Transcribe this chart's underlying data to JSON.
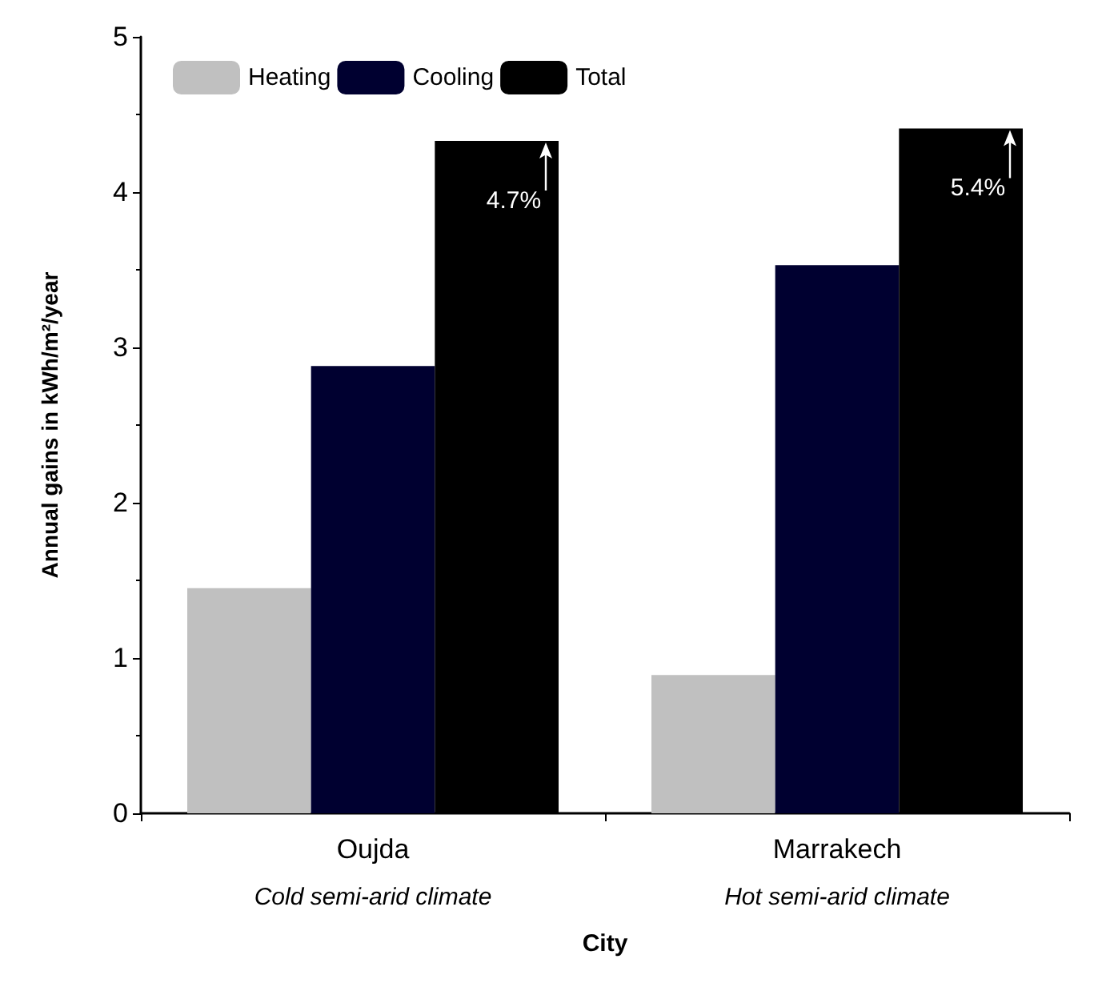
{
  "chart_data": {
    "type": "bar",
    "xlabel": "City",
    "ylabel": "Annual gains in kWh/m²/year",
    "categories": [
      "Oujda",
      "Marrakech"
    ],
    "series": [
      {
        "name": "Heating",
        "color": "#c0c0c0",
        "values": [
          1.45,
          0.89
        ]
      },
      {
        "name": "Cooling",
        "color": "#000030",
        "values": [
          2.88,
          3.53
        ]
      },
      {
        "name": "Total",
        "color": "#000000",
        "values": [
          4.33,
          4.41
        ]
      }
    ],
    "ylim": [
      0,
      5
    ],
    "yticks": [
      0,
      1,
      2,
      3,
      4,
      5
    ],
    "grid": false,
    "legend": "top left",
    "annotations": [
      "Cold semi-arid climate",
      "Hot semi-arid climate",
      "4.7%",
      "5.4%"
    ]
  }
}
